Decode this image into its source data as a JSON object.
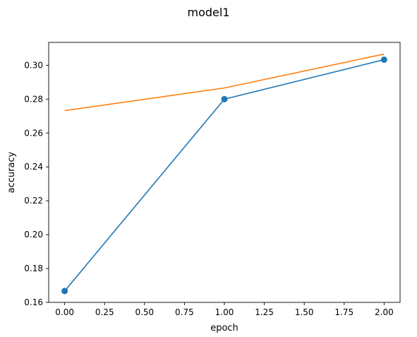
{
  "chart_data": {
    "type": "line",
    "title": "model1",
    "xlabel": "epoch",
    "ylabel": "accuracy",
    "xlim": [
      -0.1,
      2.1
    ],
    "ylim": [
      0.16,
      0.3135
    ],
    "x_ticks": [
      "0.00",
      "0.25",
      "0.50",
      "0.75",
      "1.00",
      "1.25",
      "1.50",
      "1.75",
      "2.00"
    ],
    "y_ticks": [
      "0.16",
      "0.18",
      "0.20",
      "0.22",
      "0.24",
      "0.26",
      "0.28",
      "0.30"
    ],
    "grid": false,
    "series": [
      {
        "color": "#1f77b4",
        "marker": "circle",
        "x": [
          0,
          1,
          2
        ],
        "y": [
          0.1667,
          0.28,
          0.3033
        ]
      },
      {
        "color": "#ff7f0e",
        "marker": "none",
        "x": [
          0,
          1,
          2
        ],
        "y": [
          0.2732,
          0.2866,
          0.3066
        ]
      }
    ]
  }
}
